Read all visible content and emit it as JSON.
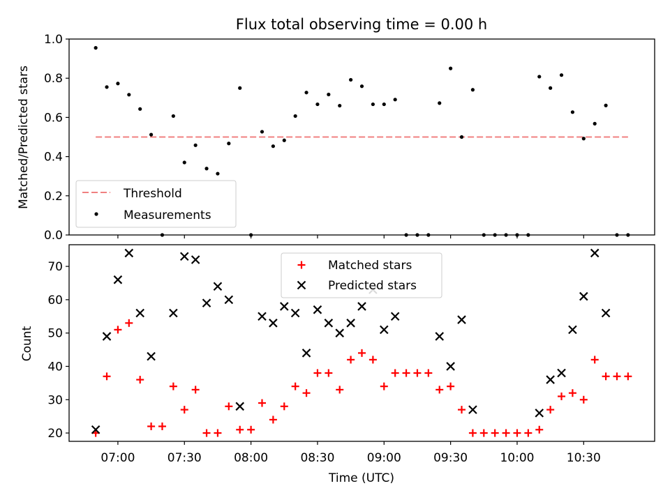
{
  "chart_data": [
    {
      "type": "scatter",
      "title": "Flux total observing time = 0.00 h",
      "xlabel": "",
      "ylabel": "Matched/Predicted stars",
      "ylim": [
        0,
        1.0
      ],
      "yticks": [
        0.0,
        0.2,
        0.4,
        0.6,
        0.8,
        1.0
      ],
      "yticklabels": [
        "0.0",
        "0.2",
        "0.4",
        "0.6",
        "0.8",
        "1.0"
      ],
      "grid": false,
      "legend": "lower-left",
      "threshold": {
        "name": "Threshold",
        "value": 0.5,
        "x_start": "06:50",
        "x_end": "10:50",
        "color": "#f08080",
        "style": "dashed"
      },
      "series": [
        {
          "name": "Measurements",
          "color": "#000000",
          "marker": "dot",
          "points": [
            [
              "06:50",
              0.955
            ],
            [
              "06:55",
              0.755
            ],
            [
              "07:00",
              0.773
            ],
            [
              "07:05",
              0.716
            ],
            [
              "07:10",
              0.643
            ],
            [
              "07:15",
              0.512
            ],
            [
              "07:20",
              0.0
            ],
            [
              "07:25",
              0.607
            ],
            [
              "07:30",
              0.37
            ],
            [
              "07:35",
              0.458
            ],
            [
              "07:40",
              0.339
            ],
            [
              "07:45",
              0.313
            ],
            [
              "07:50",
              0.467
            ],
            [
              "07:55",
              0.75
            ],
            [
              "08:00",
              0.0
            ],
            [
              "08:05",
              0.527
            ],
            [
              "08:10",
              0.453
            ],
            [
              "08:15",
              0.483
            ],
            [
              "08:20",
              0.607
            ],
            [
              "08:25",
              0.727
            ],
            [
              "08:30",
              0.667
            ],
            [
              "08:35",
              0.717
            ],
            [
              "08:40",
              0.66
            ],
            [
              "08:45",
              0.792
            ],
            [
              "08:50",
              0.759
            ],
            [
              "08:55",
              0.667
            ],
            [
              "09:00",
              0.667
            ],
            [
              "09:05",
              0.691
            ],
            [
              "09:10",
              0.0
            ],
            [
              "09:15",
              0.0
            ],
            [
              "09:20",
              0.0
            ],
            [
              "09:25",
              0.673
            ],
            [
              "09:30",
              0.85
            ],
            [
              "09:35",
              0.5
            ],
            [
              "09:40",
              0.741
            ],
            [
              "09:45",
              0.0
            ],
            [
              "09:50",
              0.0
            ],
            [
              "09:55",
              0.0
            ],
            [
              "10:00",
              0.0
            ],
            [
              "10:05",
              0.0
            ],
            [
              "10:10",
              0.808
            ],
            [
              "10:15",
              0.75
            ],
            [
              "10:20",
              0.816
            ],
            [
              "10:25",
              0.627
            ],
            [
              "10:30",
              0.492
            ],
            [
              "10:35",
              0.568
            ],
            [
              "10:40",
              0.661
            ],
            [
              "10:45",
              0.0
            ],
            [
              "10:50",
              0.0
            ]
          ]
        }
      ]
    },
    {
      "type": "scatter",
      "title": "",
      "xlabel": "Time (UTC)",
      "ylabel": "Count",
      "ylim": [
        17.5,
        76.5
      ],
      "yticks": [
        20,
        30,
        40,
        50,
        60,
        70
      ],
      "yticklabels": [
        "20",
        "30",
        "40",
        "50",
        "60",
        "70"
      ],
      "xlim": [
        "06:38",
        "11:02"
      ],
      "xticks": [
        "07:00",
        "07:30",
        "08:00",
        "08:30",
        "09:00",
        "09:30",
        "10:00",
        "10:30"
      ],
      "grid": false,
      "legend": "upper-center",
      "series": [
        {
          "name": "Matched stars",
          "color": "#ff0000",
          "marker": "plus",
          "points": [
            [
              "06:50",
              20
            ],
            [
              "06:55",
              37
            ],
            [
              "07:00",
              51
            ],
            [
              "07:05",
              53
            ],
            [
              "07:10",
              36
            ],
            [
              "07:15",
              22
            ],
            [
              "07:20",
              22
            ],
            [
              "07:25",
              34
            ],
            [
              "07:30",
              27
            ],
            [
              "07:35",
              33
            ],
            [
              "07:40",
              20
            ],
            [
              "07:45",
              20
            ],
            [
              "07:50",
              28
            ],
            [
              "07:55",
              21
            ],
            [
              "08:00",
              21
            ],
            [
              "08:05",
              29
            ],
            [
              "08:10",
              24
            ],
            [
              "08:15",
              28
            ],
            [
              "08:20",
              34
            ],
            [
              "08:25",
              32
            ],
            [
              "08:30",
              38
            ],
            [
              "08:35",
              38
            ],
            [
              "08:40",
              33
            ],
            [
              "08:45",
              42
            ],
            [
              "08:50",
              44
            ],
            [
              "08:55",
              42
            ],
            [
              "09:00",
              34
            ],
            [
              "09:05",
              38
            ],
            [
              "09:10",
              38
            ],
            [
              "09:15",
              38
            ],
            [
              "09:20",
              38
            ],
            [
              "09:25",
              33
            ],
            [
              "09:30",
              34
            ],
            [
              "09:35",
              27
            ],
            [
              "09:40",
              20
            ],
            [
              "09:45",
              20
            ],
            [
              "09:50",
              20
            ],
            [
              "09:55",
              20
            ],
            [
              "10:00",
              20
            ],
            [
              "10:05",
              20
            ],
            [
              "10:10",
              21
            ],
            [
              "10:15",
              27
            ],
            [
              "10:20",
              31
            ],
            [
              "10:25",
              32
            ],
            [
              "10:30",
              30
            ],
            [
              "10:35",
              42
            ],
            [
              "10:40",
              37
            ],
            [
              "10:45",
              37
            ],
            [
              "10:50",
              37
            ]
          ]
        },
        {
          "name": "Predicted stars",
          "color": "#000000",
          "marker": "x",
          "points": [
            [
              "06:50",
              21
            ],
            [
              "06:55",
              49
            ],
            [
              "07:00",
              66
            ],
            [
              "07:05",
              74
            ],
            [
              "07:10",
              56
            ],
            [
              "07:15",
              43
            ],
            [
              "07:25",
              56
            ],
            [
              "07:30",
              73
            ],
            [
              "07:35",
              72
            ],
            [
              "07:40",
              59
            ],
            [
              "07:45",
              64
            ],
            [
              "07:50",
              60
            ],
            [
              "07:55",
              28
            ],
            [
              "08:05",
              55
            ],
            [
              "08:10",
              53
            ],
            [
              "08:15",
              58
            ],
            [
              "08:20",
              56
            ],
            [
              "08:25",
              44
            ],
            [
              "08:30",
              57
            ],
            [
              "08:35",
              53
            ],
            [
              "08:40",
              50
            ],
            [
              "08:45",
              53
            ],
            [
              "08:50",
              58
            ],
            [
              "08:55",
              63
            ],
            [
              "09:00",
              51
            ],
            [
              "09:05",
              55
            ],
            [
              "09:25",
              49
            ],
            [
              "09:30",
              40
            ],
            [
              "09:35",
              54
            ],
            [
              "09:40",
              27
            ],
            [
              "10:10",
              26
            ],
            [
              "10:15",
              36
            ],
            [
              "10:20",
              38
            ],
            [
              "10:25",
              51
            ],
            [
              "10:30",
              61
            ],
            [
              "10:35",
              74
            ],
            [
              "10:40",
              56
            ]
          ]
        }
      ]
    }
  ]
}
